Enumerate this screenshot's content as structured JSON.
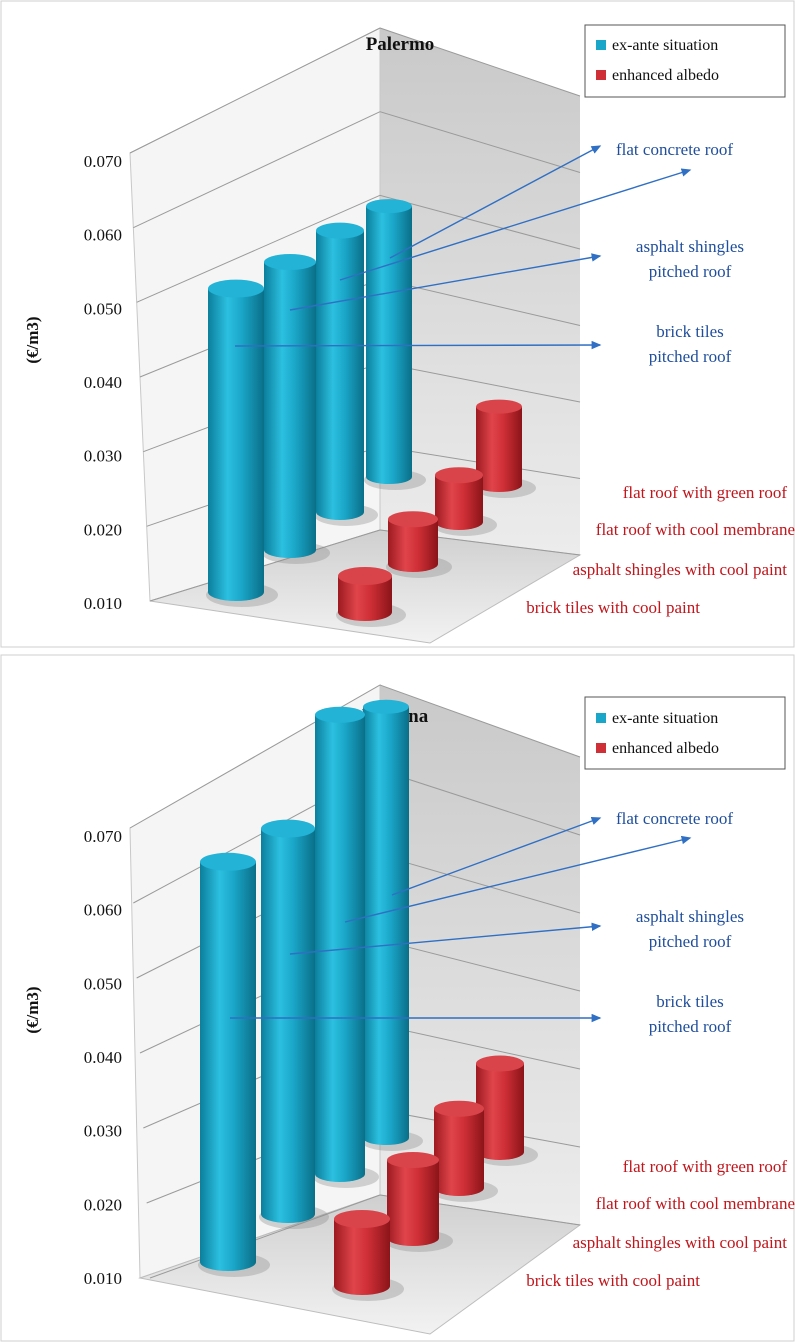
{
  "colors": {
    "ex_ante": "#1aa6c8",
    "enhanced": "#cf2f36",
    "annotation_blue": "#1f4e9c",
    "label_red": "#c0151b",
    "arrow": "#2f6fc4"
  },
  "chart_data": [
    {
      "type": "bar",
      "style": "3d-cylinder",
      "title": "Palermo",
      "ylabel": "(€/m3)",
      "xlabel": "",
      "ylim": [
        0.01,
        0.07
      ],
      "yticks": [
        "0.010",
        "0.020",
        "0.030",
        "0.040",
        "0.050",
        "0.060",
        "0.070"
      ],
      "grid": true,
      "legend": {
        "position": "top-right",
        "entries": [
          "ex-ante situation",
          "enhanced albedo"
        ]
      },
      "series": [
        {
          "name": "ex-ante situation",
          "color": "#1aa6c8",
          "categories": [
            "brick tiles pitched roof",
            "asphalt shingles pitched roof",
            "flat concrete roof",
            "flat concrete roof"
          ],
          "values": [
            0.047,
            0.05,
            0.052,
            0.053
          ]
        },
        {
          "name": "enhanced albedo",
          "color": "#cf2f36",
          "categories": [
            "brick tiles with cool paint",
            "asphalt shingles with cool paint",
            "flat roof with cool membrane",
            "flat roof with green roof"
          ],
          "values": [
            0.016,
            0.018,
            0.019,
            0.026
          ]
        }
      ],
      "annotations": {
        "blue": [
          "flat concrete roof",
          "asphalt shingles",
          "pitched roof",
          "brick tiles",
          "pitched roof"
        ],
        "red": [
          "flat roof with green roof",
          "flat roof with cool membrane",
          "asphalt shingles with cool paint",
          "brick tiles with cool paint"
        ]
      }
    },
    {
      "type": "bar",
      "style": "3d-cylinder",
      "title": "Messina",
      "ylabel": "(€/m3)",
      "xlabel": "",
      "ylim": [
        0.01,
        0.07
      ],
      "yticks": [
        "0.010",
        "0.020",
        "0.030",
        "0.040",
        "0.050",
        "0.060",
        "0.070"
      ],
      "grid": true,
      "legend": {
        "position": "top-right",
        "entries": [
          "ex-ante situation",
          "enhanced albedo"
        ]
      },
      "series": [
        {
          "name": "ex-ante situation",
          "color": "#1aa6c8",
          "categories": [
            "brick tiles pitched roof",
            "asphalt shingles pitched roof",
            "flat concrete roof",
            "flat concrete roof"
          ],
          "values": [
            0.056,
            0.057,
            0.066,
            0.066
          ]
        },
        {
          "name": "enhanced albedo",
          "color": "#cf2f36",
          "categories": [
            "brick tiles with cool paint",
            "asphalt shingles with cool paint",
            "flat roof with cool membrane",
            "flat roof with green roof"
          ],
          "values": [
            0.02,
            0.022,
            0.023,
            0.025
          ]
        }
      ],
      "annotations": {
        "blue": [
          "flat concrete roof",
          "asphalt shingles",
          "pitched roof",
          "brick tiles",
          "pitched roof"
        ],
        "red": [
          "flat roof with green roof",
          "flat roof with cool membrane",
          "asphalt shingles with cool paint",
          "brick tiles with cool paint"
        ]
      }
    }
  ]
}
